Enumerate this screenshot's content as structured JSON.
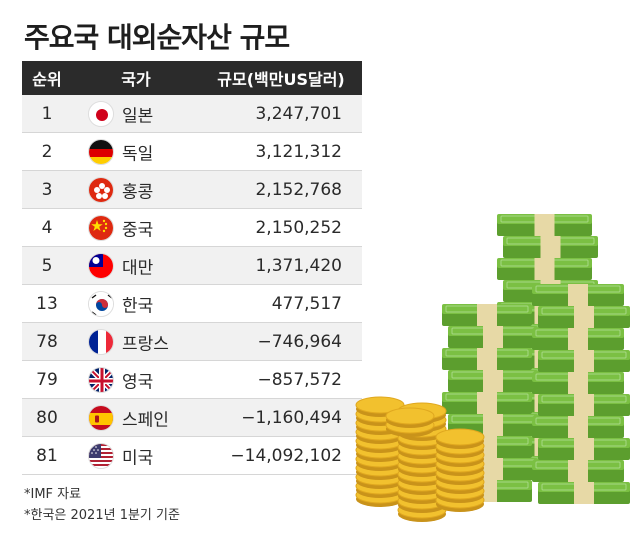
{
  "title": "주요국 대외순자산 규모",
  "chart_data": {
    "type": "table",
    "title": "주요국 대외순자산 규모",
    "columns": [
      "순위",
      "국가",
      "규모(백만US달러)"
    ],
    "rows": [
      {
        "rank": "1",
        "country": "일본",
        "value": "3,247,701",
        "flag_icon": "japan-flag-icon"
      },
      {
        "rank": "2",
        "country": "독일",
        "value": "3,121,312",
        "flag_icon": "germany-flag-icon"
      },
      {
        "rank": "3",
        "country": "홍콩",
        "value": "2,152,768",
        "flag_icon": "hong-kong-flag-icon"
      },
      {
        "rank": "4",
        "country": "중국",
        "value": "2,150,252",
        "flag_icon": "china-flag-icon"
      },
      {
        "rank": "5",
        "country": "대만",
        "value": "1,371,420",
        "flag_icon": "taiwan-flag-icon"
      },
      {
        "rank": "13",
        "country": "한국",
        "value": "477,517",
        "flag_icon": "korea-flag-icon"
      },
      {
        "rank": "78",
        "country": "프랑스",
        "value": "−746,964",
        "flag_icon": "france-flag-icon"
      },
      {
        "rank": "79",
        "country": "영국",
        "value": "−857,572",
        "flag_icon": "uk-flag-icon"
      },
      {
        "rank": "80",
        "country": "스페인",
        "value": "−1,160,494",
        "flag_icon": "spain-flag-icon"
      },
      {
        "rank": "81",
        "country": "미국",
        "value": "−14,092,102",
        "flag_icon": "usa-flag-icon"
      }
    ]
  },
  "notes": [
    "*IMF 자료",
    "*한국은 2021년 1분기 기준"
  ],
  "colors": {
    "header_bg": "#2b2b2b",
    "row_alt": "#f1f1f1",
    "cash_green": "#7bc043",
    "coin_gold": "#f2c12e"
  }
}
